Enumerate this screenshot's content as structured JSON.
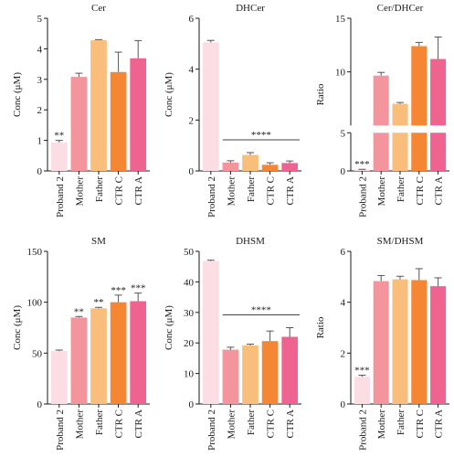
{
  "colors": {
    "Proband 2": "#fbdde3",
    "Mother": "#f4959d",
    "Father": "#f9bd7c",
    "CTR C": "#f58633",
    "CTR A": "#ee6390"
  },
  "chart_data": [
    {
      "type": "bar",
      "title": "Cer",
      "ylabel": "Conc (μM)",
      "categories": [
        "Proband 2",
        "Mother",
        "Father",
        "CTR C",
        "CTR A"
      ],
      "values": [
        0.93,
        3.08,
        4.28,
        3.24,
        3.69
      ],
      "errors": [
        0.07,
        0.12,
        0.02,
        0.65,
        0.58
      ],
      "ylim": [
        0,
        5
      ],
      "yticks": [
        "0",
        "1",
        "2",
        "3",
        "4",
        "5"
      ],
      "annotations": [
        "**",
        "",
        "",
        "",
        ""
      ]
    },
    {
      "type": "bar",
      "title": "DHCer",
      "ylabel": "Conc (μM)",
      "categories": [
        "Proband 2",
        "Mother",
        "Father",
        "CTR C",
        "CTR A"
      ],
      "values": [
        5.05,
        0.33,
        0.63,
        0.24,
        0.31
      ],
      "errors": [
        0.08,
        0.07,
        0.09,
        0.08,
        0.08
      ],
      "ylim": [
        0,
        6
      ],
      "yticks": [
        "0",
        "2",
        "4",
        "6"
      ],
      "annotations": [
        "",
        "",
        "",
        "",
        ""
      ],
      "bracket": "****"
    },
    {
      "type": "bar",
      "title": "Cer/DHCer",
      "ylabel": "Ratio",
      "categories": [
        "Proband 2",
        "Mother",
        "Father",
        "CTR C",
        "CTR A"
      ],
      "values": [
        0.18,
        9.65,
        7.02,
        12.4,
        11.2
      ],
      "errors": [
        0.03,
        0.3,
        0.12,
        0.35,
        2.05
      ],
      "ylim": [
        0,
        15
      ],
      "yticks": [
        "0",
        "5",
        "10",
        "15"
      ],
      "broken_axis": true,
      "annotations": [
        "***",
        "",
        "",
        "",
        ""
      ]
    },
    {
      "type": "bar",
      "title": "SM",
      "ylabel": "Conc (μM)",
      "categories": [
        "Proband 2",
        "Mother",
        "Father",
        "CTR C",
        "CTR A"
      ],
      "values": [
        52,
        85,
        94,
        100,
        101
      ],
      "errors": [
        1,
        1,
        1,
        7,
        8
      ],
      "ylim": [
        0,
        150
      ],
      "yticks": [
        "0",
        "50",
        "100",
        "150"
      ],
      "annotations": [
        "",
        "**",
        "**",
        "***",
        "***"
      ]
    },
    {
      "type": "bar",
      "title": "DHSM",
      "ylabel": "Conc (μM)",
      "categories": [
        "Proband 2",
        "Mother",
        "Father",
        "CTR C",
        "CTR A"
      ],
      "values": [
        46.8,
        17.8,
        19.2,
        20.6,
        22.0
      ],
      "errors": [
        0.3,
        0.8,
        0.4,
        3.3,
        3.0
      ],
      "ylim": [
        0,
        50
      ],
      "yticks": [
        "0",
        "10",
        "20",
        "30",
        "40",
        "50"
      ],
      "annotations": [
        "",
        "",
        "",
        "",
        ""
      ],
      "bracket": "****"
    },
    {
      "type": "bar",
      "title": "SM/DHSM",
      "ylabel": "Ratio",
      "categories": [
        "Proband 2",
        "Mother",
        "Father",
        "CTR C",
        "CTR A"
      ],
      "values": [
        1.07,
        4.83,
        4.9,
        4.87,
        4.63
      ],
      "errors": [
        0.06,
        0.22,
        0.12,
        0.45,
        0.33
      ],
      "ylim": [
        0,
        6
      ],
      "yticks": [
        "0",
        "2",
        "4",
        "6"
      ],
      "annotations": [
        "***",
        "",
        "",
        "",
        ""
      ]
    }
  ]
}
